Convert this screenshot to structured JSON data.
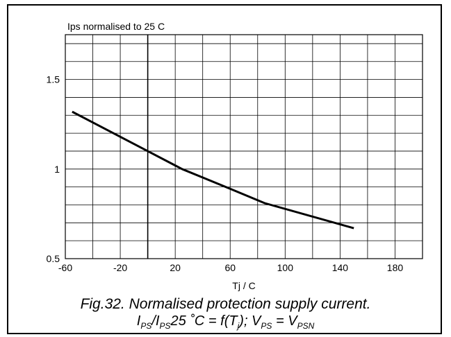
{
  "chart_data": {
    "type": "line",
    "ytitle": "Ips normalised to 25 C",
    "xlabel": "Tj / C",
    "xlim": [
      -60,
      200
    ],
    "ylim": [
      0.5,
      1.75
    ],
    "x_ticks": [
      -60,
      -20,
      20,
      60,
      100,
      140,
      180
    ],
    "x_tick_labels": [
      "-60",
      "-20",
      "20",
      "60",
      "100",
      "140",
      "180"
    ],
    "y_ticks": [
      0.5,
      1,
      1.5
    ],
    "y_tick_labels": [
      "0.5",
      "1",
      "1.5"
    ],
    "x_grid_step": 20,
    "y_grid_step": 0.1,
    "grid": true,
    "reference_line_x": 0,
    "series": [
      {
        "x": [
          -55,
          0,
          25,
          60,
          85,
          150
        ],
        "y": [
          1.32,
          1.1,
          1.0,
          0.89,
          0.81,
          0.67
        ],
        "color": "#000000"
      }
    ]
  },
  "caption": {
    "line1": "Fig.32.  Normalised protection supply current.",
    "line2": {
      "i1": "I",
      "s1": "PS",
      "slash_i": "/I",
      "s2": "PS",
      "mid": "25 ˚C = f(T",
      "s3": "j",
      "after": "); V",
      "s4": "PS",
      "eq": " = V",
      "s5": "PSN"
    }
  }
}
